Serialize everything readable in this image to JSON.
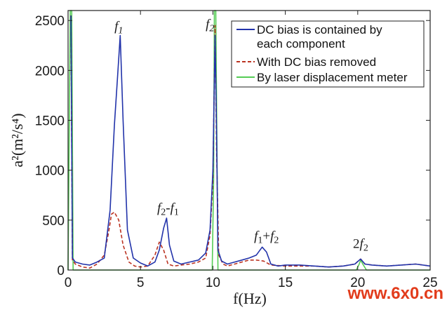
{
  "chart_data": {
    "type": "line",
    "xlabel": "f(Hz)",
    "ylabel": "a²(m²/s⁴)",
    "xlim": [
      0,
      25
    ],
    "ylim": [
      0,
      2600
    ],
    "xticks": [
      0,
      5,
      10,
      15,
      20,
      25
    ],
    "yticks": [
      0,
      500,
      1000,
      1500,
      2000,
      2500
    ],
    "grid": false,
    "legend_position": "top-right",
    "series": [
      {
        "name": "DC bias is contained by each component",
        "color": "#2233aa",
        "style": "solid",
        "x": [
          0.2,
          0.3,
          0.5,
          1.0,
          1.5,
          2.0,
          2.5,
          2.9,
          3.2,
          3.4,
          3.6,
          3.8,
          4.1,
          4.5,
          5.0,
          5.5,
          6.0,
          6.3,
          6.6,
          6.8,
          7.0,
          7.3,
          7.8,
          8.4,
          9.0,
          9.5,
          9.8,
          10.0,
          10.15,
          10.25,
          10.35,
          10.6,
          11.0,
          11.5,
          12.0,
          12.5,
          13.0,
          13.4,
          13.7,
          14.0,
          14.5,
          15.0,
          16.0,
          17.0,
          18.0,
          19.0,
          19.8,
          20.2,
          20.5,
          21.0,
          22.0,
          23.0,
          24.0,
          25.0
        ],
        "y": [
          2550,
          120,
          80,
          60,
          50,
          80,
          120,
          600,
          1450,
          1900,
          2350,
          1500,
          400,
          120,
          70,
          40,
          80,
          200,
          420,
          520,
          250,
          90,
          60,
          80,
          100,
          170,
          400,
          1000,
          2350,
          1400,
          200,
          90,
          60,
          80,
          100,
          120,
          150,
          230,
          180,
          60,
          40,
          50,
          50,
          40,
          30,
          40,
          60,
          110,
          60,
          50,
          40,
          50,
          60,
          40
        ]
      },
      {
        "name": "With DC bias removed",
        "color": "#bb3322",
        "style": "dashed",
        "x": [
          0.2,
          0.3,
          0.5,
          1.0,
          1.5,
          2.0,
          2.5,
          2.8,
          3.0,
          3.2,
          3.5,
          3.8,
          4.2,
          4.6,
          5.0,
          5.5,
          6.0,
          6.3,
          6.6,
          6.9,
          7.3,
          7.8,
          8.4,
          9.0,
          9.5,
          9.8,
          10.0,
          10.15,
          10.25,
          10.4,
          10.7,
          11.0,
          11.5,
          12.0,
          12.5,
          13.0,
          13.5,
          14.0,
          15.0,
          16.0,
          17.0,
          18.0,
          19.0,
          19.8,
          20.2,
          20.5,
          21.0,
          22.0,
          23.0,
          24.0,
          25.0
        ],
        "y": [
          2550,
          100,
          60,
          30,
          20,
          60,
          150,
          380,
          560,
          580,
          500,
          250,
          80,
          40,
          30,
          40,
          150,
          280,
          200,
          60,
          40,
          50,
          60,
          80,
          120,
          350,
          900,
          2450,
          1200,
          150,
          60,
          40,
          60,
          80,
          100,
          100,
          90,
          50,
          40,
          40,
          40,
          30,
          40,
          60,
          110,
          60,
          50,
          40,
          50,
          60,
          40
        ]
      },
      {
        "name": "By laser displacement meter",
        "color": "#55cc55",
        "style": "solid",
        "x": [
          0,
          0.15,
          0.25,
          0.35,
          0.6,
          9.95,
          10.05,
          10.1,
          10.2,
          10.35,
          10.6,
          19.9,
          20.1,
          20.2,
          20.35,
          20.6,
          25
        ],
        "y": [
          0,
          2600,
          2600,
          0,
          0,
          0,
          900,
          2600,
          2600,
          0,
          0,
          0,
          60,
          100,
          60,
          0,
          0
        ]
      }
    ],
    "annotations": [
      {
        "text": "f1",
        "x": 3.5,
        "y": 2400
      },
      {
        "text": "f2",
        "x": 9.8,
        "y": 2420
      },
      {
        "text": "f2-f1",
        "x": 6.9,
        "y": 580
      },
      {
        "text": "f1+f2",
        "x": 13.7,
        "y": 300
      },
      {
        "text": "2f2",
        "x": 20.2,
        "y": 220
      }
    ]
  },
  "watermark": "www.6x0.cn"
}
